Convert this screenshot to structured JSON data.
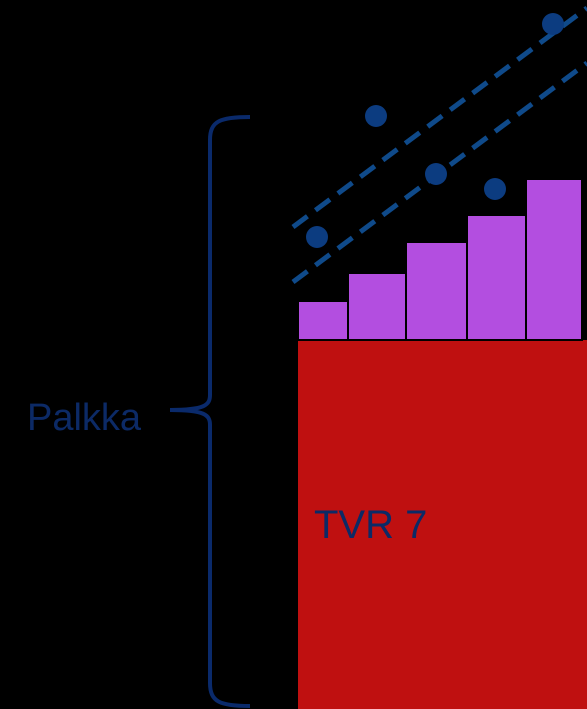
{
  "labels": {
    "brace_label": "Palkka",
    "base_block_label": "TVR 7"
  },
  "colors": {
    "background": "#000000",
    "base_block": "#BF1010",
    "step_bars": "#B34EE0",
    "step_bar_outline": "#000000",
    "brace": "#0A2A6B",
    "dashed_lines": "#0F4A8A",
    "dots": "#0C3C80",
    "label_text": "#0C2A66"
  },
  "step_bar_count": 5,
  "dot_count": 5,
  "dashed_line_count": 2
}
